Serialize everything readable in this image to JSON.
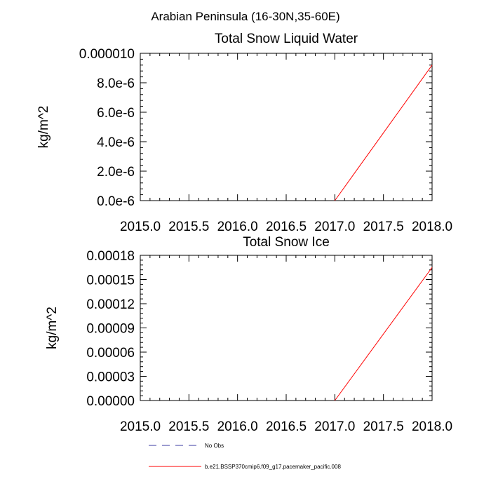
{
  "figure": {
    "suptitle": "Arabian Peninsula (16-30N,35-60E)"
  },
  "chart_data": [
    {
      "type": "line",
      "title": "Total Snow Liquid Water",
      "xlabel": "",
      "ylabel": "kg/m^2",
      "xlim": [
        2015.0,
        2018.0
      ],
      "ylim": [
        0,
        1e-05
      ],
      "x_ticks": [
        2015.0,
        2015.5,
        2016.0,
        2016.5,
        2017.0,
        2017.5,
        2018.0
      ],
      "x_tick_labels": [
        "2015.0",
        "2015.5",
        "2016.0",
        "2016.5",
        "2017.0",
        "2017.5",
        "2018.0"
      ],
      "y_ticks": [
        0,
        2e-06,
        4e-06,
        6e-06,
        8e-06,
        1e-05
      ],
      "y_tick_labels": [
        "0.0e-6",
        "2.0e-6",
        "4.0e-6",
        "6.0e-6",
        "8.0e-6",
        "0.000010"
      ],
      "series": [
        {
          "name": "b.e21.BSSP370cmip6.f09_g17.pacemaker_pacific.008",
          "color": "#ff0000",
          "x": [
            2017.0,
            2018.0
          ],
          "y": [
            0,
            9.2e-06
          ]
        }
      ]
    },
    {
      "type": "line",
      "title": "Total Snow Ice",
      "xlabel": "",
      "ylabel": "kg/m^2",
      "xlim": [
        2015.0,
        2018.0
      ],
      "ylim": [
        0,
        0.00018
      ],
      "x_ticks": [
        2015.0,
        2015.5,
        2016.0,
        2016.5,
        2017.0,
        2017.5,
        2018.0
      ],
      "x_tick_labels": [
        "2015.0",
        "2015.5",
        "2016.0",
        "2016.5",
        "2017.0",
        "2017.5",
        "2018.0"
      ],
      "y_ticks": [
        0,
        3e-05,
        6e-05,
        9e-05,
        0.00012,
        0.00015,
        0.00018
      ],
      "y_tick_labels": [
        "0.00000",
        "0.00003",
        "0.00006",
        "0.00009",
        "0.00012",
        "0.00015",
        "0.00018"
      ],
      "series": [
        {
          "name": "b.e21.BSSP370cmip6.f09_g17.pacemaker_pacific.008",
          "color": "#ff0000",
          "x": [
            2017.0,
            2018.0
          ],
          "y": [
            0,
            0.000165
          ]
        }
      ]
    }
  ],
  "legend": {
    "placement": "bottom",
    "entries": [
      {
        "label": "No Obs",
        "color": "#3a3aa0",
        "style": "dashed"
      },
      {
        "label": "b.e21.BSSP370cmip6.f09_g17.pacemaker_pacific.008",
        "color": "#ff0000",
        "style": "solid"
      }
    ]
  }
}
